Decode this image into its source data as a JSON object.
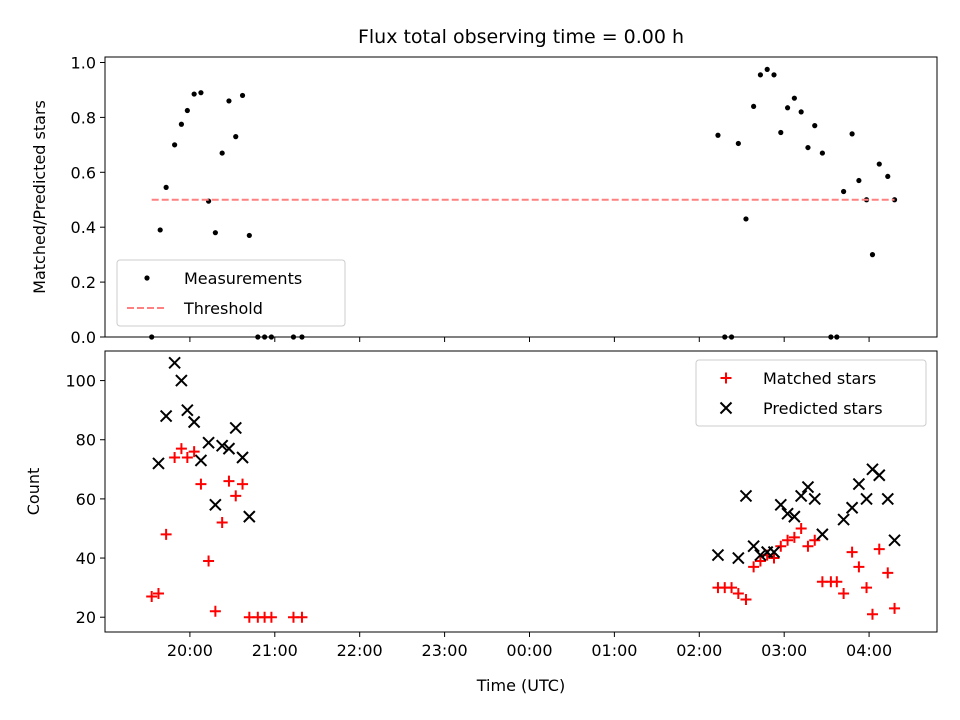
{
  "chart_data": {
    "type": "scatter",
    "title": "Flux total observing time = 0.00 h",
    "xlabel": "Time (UTC)",
    "x_range_hours": [
      19.0,
      28.8
    ],
    "x_ticks": [
      {
        "h": 20,
        "label": "20:00"
      },
      {
        "h": 21,
        "label": "21:00"
      },
      {
        "h": 22,
        "label": "22:00"
      },
      {
        "h": 23,
        "label": "23:00"
      },
      {
        "h": 24,
        "label": "00:00"
      },
      {
        "h": 25,
        "label": "01:00"
      },
      {
        "h": 26,
        "label": "02:00"
      },
      {
        "h": 27,
        "label": "03:00"
      },
      {
        "h": 28,
        "label": "04:00"
      }
    ],
    "panels": [
      {
        "ylabel": "Matched/Predicted stars",
        "ylim": [
          0,
          1.02
        ],
        "y_ticks": [
          {
            "v": 0.0,
            "label": "0.0"
          },
          {
            "v": 0.2,
            "label": "0.2"
          },
          {
            "v": 0.4,
            "label": "0.4"
          },
          {
            "v": 0.6,
            "label": "0.6"
          },
          {
            "v": 0.8,
            "label": "0.8"
          },
          {
            "v": 1.0,
            "label": "1.0"
          }
        ],
        "legend": {
          "position": "lower-left"
        },
        "series": [
          {
            "name": "Measurements",
            "marker": "dot",
            "color": "#000000",
            "points": [
              [
                19.55,
                0.0
              ],
              [
                19.65,
                0.39
              ],
              [
                19.72,
                0.545
              ],
              [
                19.82,
                0.7
              ],
              [
                19.9,
                0.775
              ],
              [
                19.97,
                0.825
              ],
              [
                20.05,
                0.885
              ],
              [
                20.13,
                0.89
              ],
              [
                20.22,
                0.495
              ],
              [
                20.3,
                0.38
              ],
              [
                20.38,
                0.67
              ],
              [
                20.46,
                0.86
              ],
              [
                20.54,
                0.73
              ],
              [
                20.62,
                0.88
              ],
              [
                20.7,
                0.37
              ],
              [
                20.8,
                0.0
              ],
              [
                20.88,
                0.0
              ],
              [
                20.96,
                0.0
              ],
              [
                21.22,
                0.0
              ],
              [
                21.32,
                0.0
              ],
              [
                26.22,
                0.735
              ],
              [
                26.3,
                0.0
              ],
              [
                26.38,
                0.0
              ],
              [
                26.46,
                0.705
              ],
              [
                26.55,
                0.43
              ],
              [
                26.64,
                0.84
              ],
              [
                26.72,
                0.955
              ],
              [
                26.8,
                0.975
              ],
              [
                26.88,
                0.955
              ],
              [
                26.96,
                0.745
              ],
              [
                27.04,
                0.835
              ],
              [
                27.12,
                0.87
              ],
              [
                27.2,
                0.82
              ],
              [
                27.28,
                0.69
              ],
              [
                27.36,
                0.77
              ],
              [
                27.45,
                0.67
              ],
              [
                27.55,
                0.0
              ],
              [
                27.62,
                0.0
              ],
              [
                27.7,
                0.53
              ],
              [
                27.8,
                0.74
              ],
              [
                27.88,
                0.57
              ],
              [
                27.97,
                0.5
              ],
              [
                28.04,
                0.3
              ],
              [
                28.12,
                0.63
              ],
              [
                28.22,
                0.585
              ],
              [
                28.3,
                0.5
              ]
            ]
          },
          {
            "name": "Threshold",
            "style": "dashed-line",
            "color": "#ff8080",
            "points": [
              [
                19.55,
                0.5
              ],
              [
                28.3,
                0.5
              ]
            ]
          }
        ]
      },
      {
        "ylabel": "Count",
        "ylim": [
          15,
          110
        ],
        "y_ticks": [
          {
            "v": 20,
            "label": "20"
          },
          {
            "v": 40,
            "label": "40"
          },
          {
            "v": 60,
            "label": "60"
          },
          {
            "v": 80,
            "label": "80"
          },
          {
            "v": 100,
            "label": "100"
          }
        ],
        "legend": {
          "position": "upper-right"
        },
        "series": [
          {
            "name": "Matched stars",
            "marker": "plus",
            "color": "#ff0000",
            "points": [
              [
                19.55,
                27
              ],
              [
                19.63,
                28
              ],
              [
                19.72,
                48
              ],
              [
                19.82,
                74
              ],
              [
                19.9,
                77
              ],
              [
                19.97,
                74
              ],
              [
                20.05,
                76
              ],
              [
                20.13,
                65
              ],
              [
                20.22,
                39
              ],
              [
                20.3,
                22
              ],
              [
                20.38,
                52
              ],
              [
                20.46,
                66
              ],
              [
                20.54,
                61
              ],
              [
                20.62,
                65
              ],
              [
                20.7,
                20
              ],
              [
                20.8,
                20
              ],
              [
                20.88,
                20
              ],
              [
                20.96,
                20
              ],
              [
                21.22,
                20
              ],
              [
                21.32,
                20
              ],
              [
                26.22,
                30
              ],
              [
                26.3,
                30
              ],
              [
                26.38,
                30
              ],
              [
                26.46,
                28
              ],
              [
                26.55,
                26
              ],
              [
                26.64,
                37
              ],
              [
                26.72,
                39
              ],
              [
                26.8,
                41
              ],
              [
                26.88,
                40
              ],
              [
                26.96,
                44
              ],
              [
                27.04,
                46
              ],
              [
                27.12,
                47
              ],
              [
                27.2,
                50
              ],
              [
                27.28,
                44
              ],
              [
                27.36,
                46
              ],
              [
                27.45,
                32
              ],
              [
                27.55,
                32
              ],
              [
                27.62,
                32
              ],
              [
                27.7,
                28
              ],
              [
                27.8,
                42
              ],
              [
                27.88,
                37
              ],
              [
                27.97,
                30
              ],
              [
                28.04,
                21
              ],
              [
                28.12,
                43
              ],
              [
                28.22,
                35
              ],
              [
                28.3,
                23
              ]
            ]
          },
          {
            "name": "Predicted stars",
            "marker": "x",
            "color": "#000000",
            "points": [
              [
                19.63,
                72
              ],
              [
                19.72,
                88
              ],
              [
                19.82,
                106
              ],
              [
                19.9,
                100
              ],
              [
                19.97,
                90
              ],
              [
                20.05,
                86
              ],
              [
                20.13,
                73
              ],
              [
                20.22,
                79
              ],
              [
                20.3,
                58
              ],
              [
                20.38,
                78
              ],
              [
                20.46,
                77
              ],
              [
                20.54,
                84
              ],
              [
                20.62,
                74
              ],
              [
                20.7,
                54
              ],
              [
                26.22,
                41
              ],
              [
                26.46,
                40
              ],
              [
                26.55,
                61
              ],
              [
                26.64,
                44
              ],
              [
                26.72,
                41
              ],
              [
                26.8,
                42
              ],
              [
                26.88,
                42
              ],
              [
                26.96,
                58
              ],
              [
                27.04,
                55
              ],
              [
                27.12,
                54
              ],
              [
                27.2,
                61
              ],
              [
                27.28,
                64
              ],
              [
                27.36,
                60
              ],
              [
                27.45,
                48
              ],
              [
                27.7,
                53
              ],
              [
                27.8,
                57
              ],
              [
                27.88,
                65
              ],
              [
                27.97,
                60
              ],
              [
                28.04,
                70
              ],
              [
                28.12,
                68
              ],
              [
                28.22,
                60
              ],
              [
                28.3,
                46
              ]
            ]
          }
        ]
      }
    ]
  }
}
